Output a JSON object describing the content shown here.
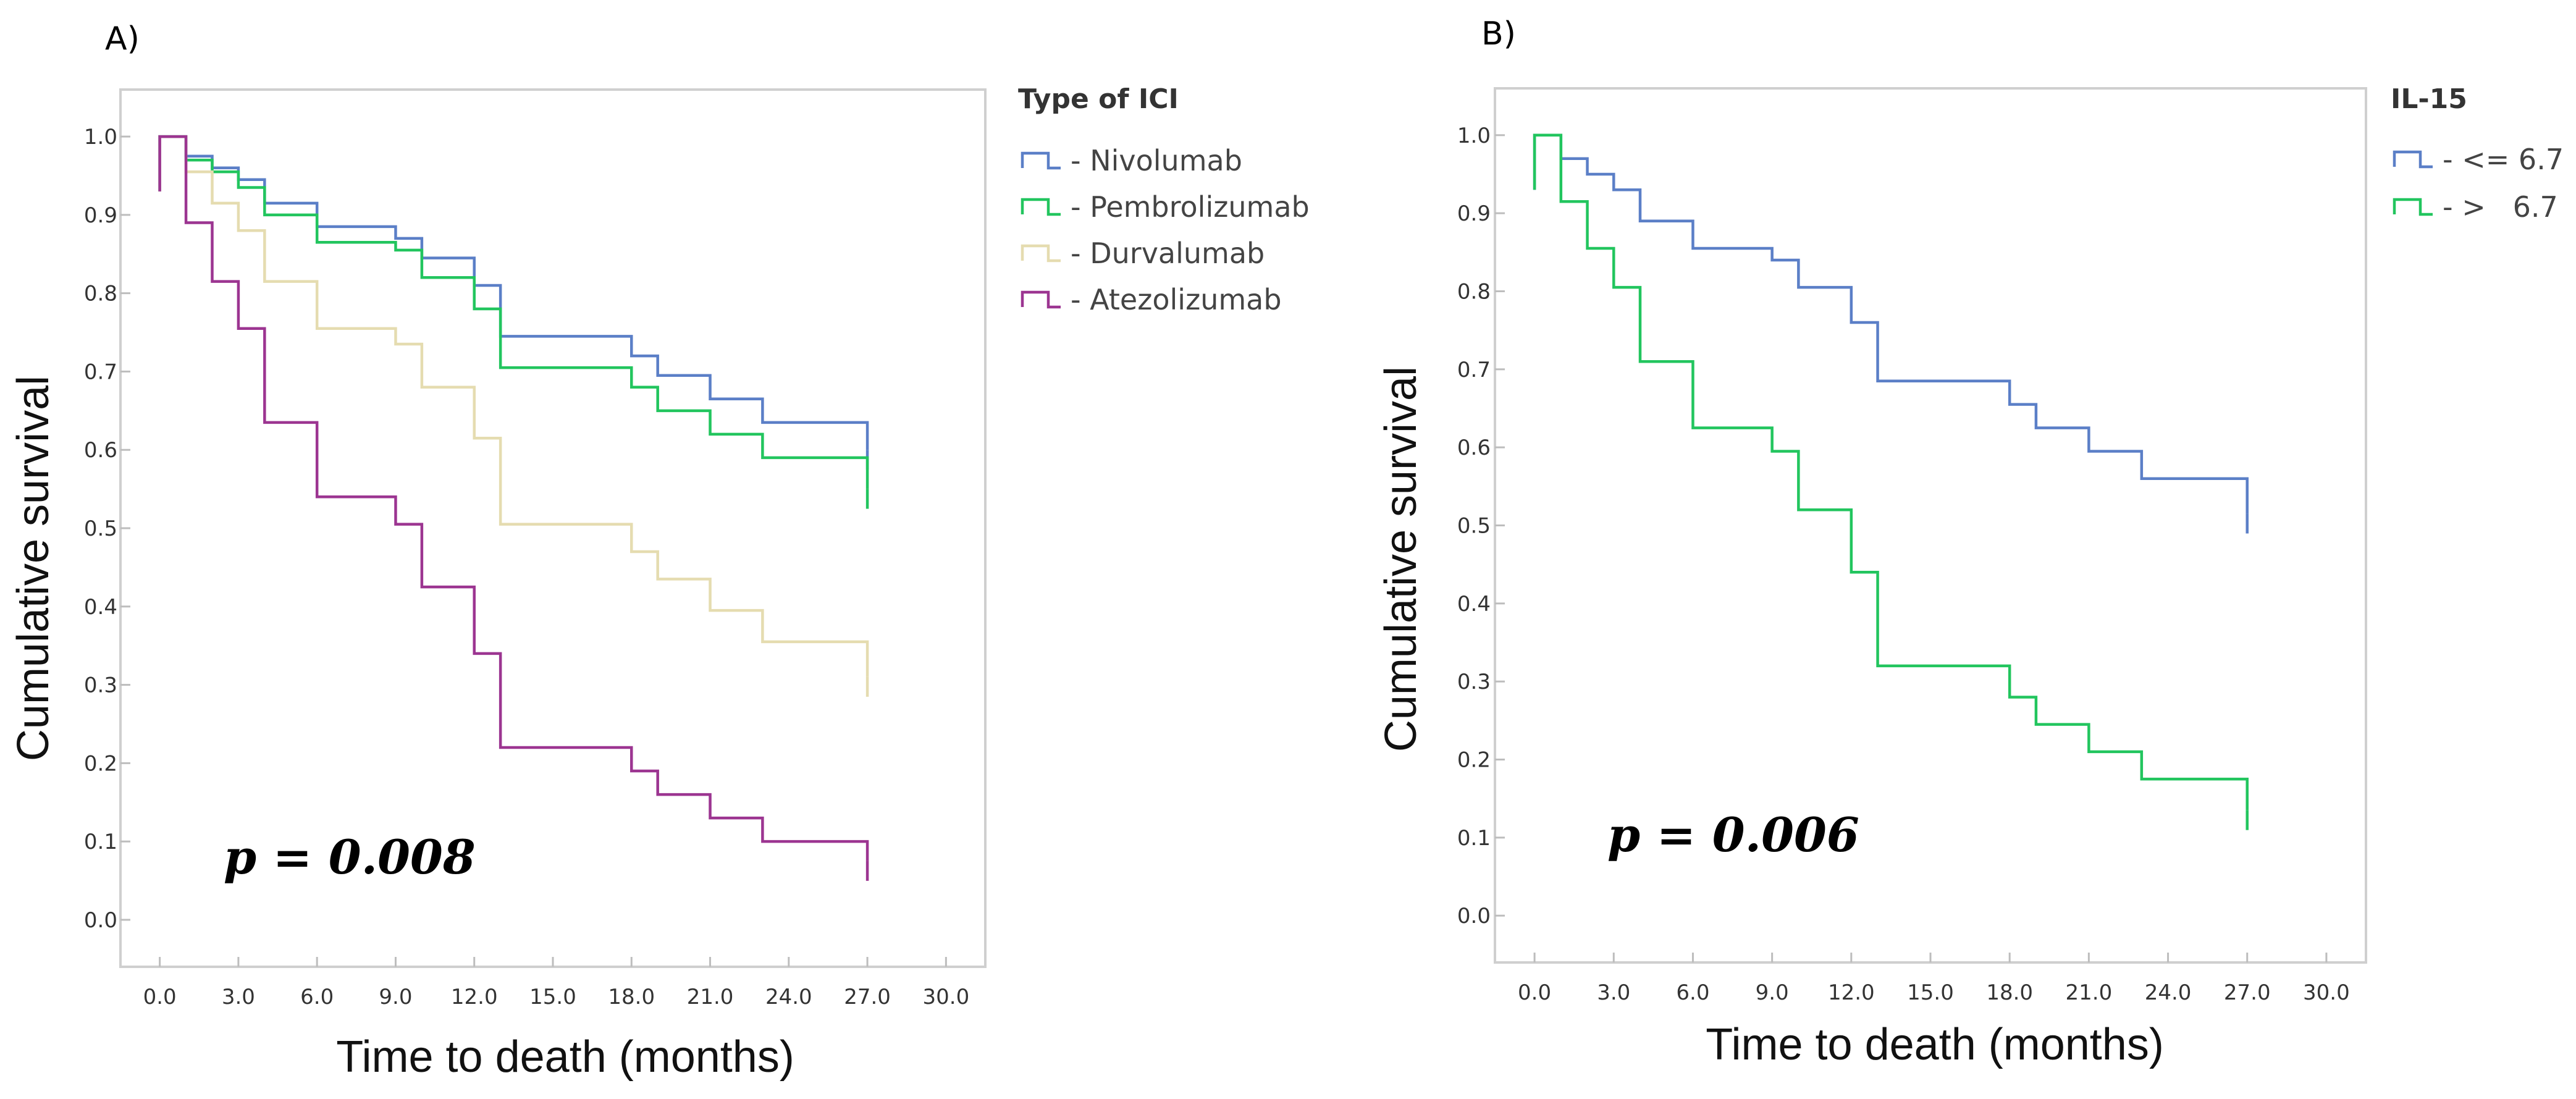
{
  "chart_data": [
    {
      "type": "line",
      "panel_label": "A)",
      "xlabel": "Time to death (months)",
      "ylabel": "Cumulative survival",
      "xlim": [
        -1.5,
        31.5
      ],
      "ylim": [
        -0.06,
        1.06
      ],
      "x_ticks": [
        "0.0",
        "3.0",
        "6.0",
        "9.0",
        "12.0",
        "15.0",
        "18.0",
        "21.0",
        "24.0",
        "27.0",
        "30.0"
      ],
      "y_ticks": [
        "0.0",
        "0.1",
        "0.2",
        "0.3",
        "0.4",
        "0.5",
        "0.6",
        "0.7",
        "0.8",
        "0.9",
        "1.0"
      ],
      "legend_title": "Type of ICI",
      "annotation": "p = 0.008",
      "series": [
        {
          "name": "- Nivolumab",
          "color": "#5b7fc7",
          "x": [
            0,
            1,
            2,
            3,
            4,
            6,
            9,
            10,
            12,
            13,
            18,
            19,
            21,
            23,
            27
          ],
          "y": [
            1.0,
            0.975,
            0.96,
            0.945,
            0.915,
            0.885,
            0.87,
            0.845,
            0.81,
            0.745,
            0.72,
            0.695,
            0.665,
            0.635,
            0.6
          ]
        },
        {
          "name": "- Pembrolizumab",
          "color": "#22c55e",
          "x": [
            0,
            1,
            2,
            3,
            4,
            6,
            9,
            10,
            12,
            13,
            18,
            19,
            21,
            23,
            27
          ],
          "y": [
            1.0,
            0.97,
            0.955,
            0.935,
            0.9,
            0.865,
            0.855,
            0.82,
            0.78,
            0.705,
            0.68,
            0.65,
            0.62,
            0.59,
            0.55
          ]
        },
        {
          "name": "- Durvalumab",
          "color": "#e5dcb0",
          "x": [
            0,
            1,
            2,
            3,
            4,
            6,
            9,
            10,
            12,
            13,
            18,
            19,
            21,
            23,
            27
          ],
          "y": [
            1.0,
            0.955,
            0.915,
            0.88,
            0.815,
            0.755,
            0.735,
            0.68,
            0.615,
            0.505,
            0.47,
            0.435,
            0.395,
            0.355,
            0.31
          ]
        },
        {
          "name": "- Atezolizumab",
          "color": "#9c3591",
          "x": [
            0,
            1,
            2,
            3,
            4,
            6,
            9,
            10,
            12,
            13,
            18,
            19,
            21,
            23,
            27
          ],
          "y": [
            1.0,
            0.89,
            0.815,
            0.755,
            0.635,
            0.54,
            0.505,
            0.425,
            0.34,
            0.22,
            0.19,
            0.16,
            0.13,
            0.1,
            0.075
          ]
        }
      ]
    },
    {
      "type": "line",
      "panel_label": "B)",
      "xlabel": "Time to death (months)",
      "ylabel": "Cumulative survival",
      "xlim": [
        -1.5,
        31.5
      ],
      "ylim": [
        -0.06,
        1.06
      ],
      "x_ticks": [
        "0.0",
        "3.0",
        "6.0",
        "9.0",
        "12.0",
        "15.0",
        "18.0",
        "21.0",
        "24.0",
        "27.0",
        "30.0"
      ],
      "y_ticks": [
        "0.0",
        "0.1",
        "0.2",
        "0.3",
        "0.4",
        "0.5",
        "0.6",
        "0.7",
        "0.8",
        "0.9",
        "1.0"
      ],
      "legend_title": "IL-15",
      "annotation": "p = 0.006",
      "series": [
        {
          "name": "- <= 6.7",
          "color": "#5b7fc7",
          "x": [
            0,
            1,
            2,
            3,
            4,
            6,
            9,
            10,
            12,
            13,
            18,
            19,
            21,
            23,
            27
          ],
          "y": [
            1.0,
            0.97,
            0.95,
            0.93,
            0.89,
            0.855,
            0.84,
            0.805,
            0.76,
            0.685,
            0.655,
            0.625,
            0.595,
            0.56,
            0.515
          ]
        },
        {
          "name": "- >   6.7",
          "color": "#22c55e",
          "x": [
            0,
            1,
            2,
            3,
            4,
            6,
            9,
            10,
            12,
            13,
            18,
            19,
            21,
            23,
            27
          ],
          "y": [
            1.0,
            0.915,
            0.855,
            0.805,
            0.71,
            0.625,
            0.595,
            0.52,
            0.44,
            0.32,
            0.28,
            0.245,
            0.21,
            0.175,
            0.135
          ]
        }
      ]
    }
  ]
}
